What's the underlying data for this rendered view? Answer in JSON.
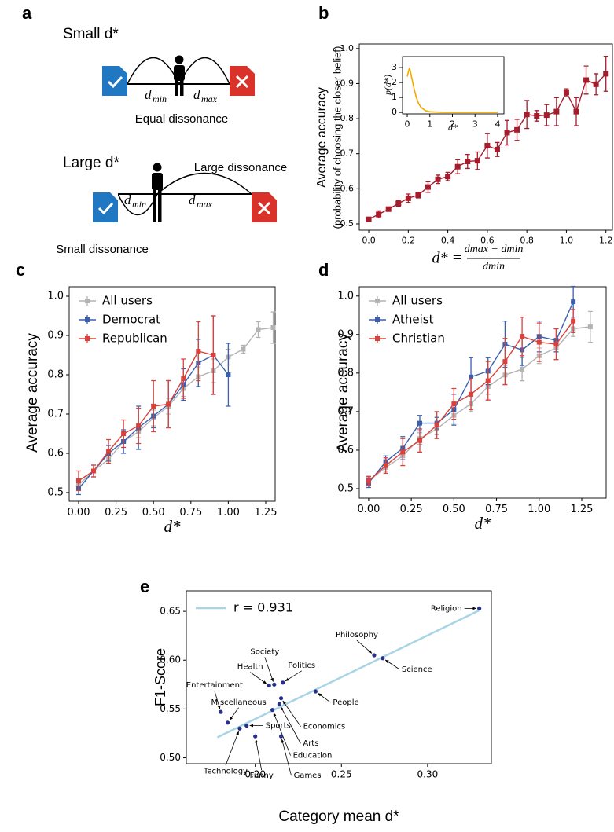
{
  "figure_a": {
    "panel": "a",
    "top": {
      "title": "Small d*",
      "dmin": {
        "symbol": "d",
        "subscript": "min"
      },
      "dmax": {
        "symbol": "d",
        "subscript": "max"
      },
      "caption": "Equal dissonance"
    },
    "bottom": {
      "title": "Large d*",
      "upper_caption": "Large dissonance",
      "dmin": {
        "symbol": "d",
        "subscript": "min"
      },
      "dmax": {
        "symbol": "d",
        "subscript": "max"
      },
      "lower_caption": "Small dissonance"
    }
  },
  "chart_data": [
    {
      "type": "line",
      "panel": "b",
      "ylabel": [
        "Average accuracy",
        "(probability of choosing the closer belief)"
      ],
      "xlabel": {
        "lhs": "d* =",
        "numerator": "dmax − dmin",
        "denominator": "dmin"
      },
      "x": [
        0,
        0.05,
        0.1,
        0.15,
        0.2,
        0.25,
        0.3,
        0.35,
        0.4,
        0.45,
        0.5,
        0.55,
        0.6,
        0.65,
        0.7,
        0.75,
        0.8,
        0.85,
        0.9,
        0.95,
        1,
        1.05,
        1.1,
        1.15,
        1.2
      ],
      "series": [
        {
          "color": "#a51d2d",
          "values": [
            0.513,
            0.527,
            0.542,
            0.558,
            0.573,
            0.582,
            0.605,
            0.627,
            0.635,
            0.663,
            0.678,
            0.68,
            0.723,
            0.712,
            0.76,
            0.768,
            0.812,
            0.808,
            0.81,
            0.82,
            0.875,
            0.82,
            0.91,
            0.898,
            0.928
          ],
          "errors": [
            0.005,
            0.01,
            0.006,
            0.008,
            0.012,
            0.008,
            0.015,
            0.012,
            0.012,
            0.02,
            0.02,
            0.025,
            0.035,
            0.02,
            0.035,
            0.03,
            0.04,
            0.015,
            0.03,
            0.04,
            0.01,
            0.04,
            0.04,
            0.03,
            0.05
          ]
        }
      ],
      "xlim": [
        -0.048,
        1.233
      ],
      "ylim": [
        0.482,
        1.013
      ],
      "xticks": [
        {
          "value": 0,
          "label": "0.0"
        },
        0.2,
        0.4,
        0.6,
        0.8,
        {
          "value": 1,
          "label": "1.0"
        },
        1.2
      ],
      "yticks": [
        0.5,
        0.6,
        0.7,
        0.8,
        0.9,
        {
          "value": 1,
          "label": "1.0"
        }
      ],
      "inset": {
        "type": "line",
        "ylabel": "p(d*)",
        "xlabel": "d*",
        "x": [
          0,
          0.1,
          0.2,
          0.3,
          0.4,
          0.5,
          0.6,
          0.8,
          1,
          1.5,
          2,
          3,
          4
        ],
        "series": [
          {
            "color": "#f2a900",
            "values": [
              2.4,
              3.0,
              2.3,
              1.6,
              1.0,
              0.6,
              0.35,
              0.12,
              0.04,
              0.01,
              0,
              0,
              0
            ]
          }
        ],
        "xlim": [
          -0.21,
          4.28
        ],
        "ylim": [
          -0.1,
          3.74
        ],
        "xticks": [
          0,
          1,
          2,
          3,
          4
        ],
        "yticks": [
          0,
          1,
          2,
          3
        ]
      }
    },
    {
      "type": "line",
      "panel": "c",
      "ylabel": "Average accuracy",
      "xlabel": "d*",
      "legend": "upper left",
      "x": [
        0,
        0.1,
        0.2,
        0.3,
        0.4,
        0.5,
        0.6,
        0.7,
        0.8,
        0.9,
        1,
        1.1,
        1.2,
        1.3
      ],
      "series": [
        {
          "name": "All users",
          "color": "#b3b3b3",
          "values": [
            0.52,
            0.555,
            0.585,
            0.63,
            0.655,
            0.69,
            0.72,
            0.765,
            0.795,
            0.81,
            0.845,
            0.865,
            0.915,
            0.92
          ],
          "errors": [
            0.01,
            0.01,
            0.01,
            0.015,
            0.015,
            0.02,
            0.02,
            0.02,
            0.025,
            0.03,
            0.02,
            0.01,
            0.02,
            0.04
          ]
        },
        {
          "name": "Democrat",
          "color": "#3a5fad",
          "values": [
            0.51,
            0.555,
            0.6,
            0.63,
            0.665,
            0.695,
            0.725,
            0.775,
            0.83,
            0.85,
            0.8,
            null,
            null,
            null
          ],
          "errors": [
            0.015,
            0.015,
            0.02,
            0.03,
            0.055,
            0.03,
            0.06,
            0.04,
            0.06,
            0.1,
            0.08,
            null,
            null,
            null
          ]
        },
        {
          "name": "Republican",
          "color": "#d9413a",
          "values": [
            0.53,
            0.555,
            0.605,
            0.65,
            0.67,
            0.72,
            0.725,
            0.79,
            0.86,
            0.85,
            null,
            null,
            null,
            null
          ],
          "errors": [
            0.025,
            0.015,
            0.03,
            0.035,
            0.045,
            0.065,
            0.06,
            0.05,
            0.075,
            0.1,
            null,
            null,
            null,
            null
          ]
        }
      ],
      "xlim": [
        -0.063,
        1.313
      ],
      "ylim": [
        0.478,
        1.024
      ],
      "xticks": [
        {
          "value": 0,
          "label": "0.00"
        },
        0.25,
        {
          "value": 0.5,
          "label": "0.50"
        },
        0.75,
        {
          "value": 1,
          "label": "1.00"
        },
        1.25
      ],
      "yticks": [
        0.5,
        0.6,
        0.7,
        0.8,
        0.9,
        {
          "value": 1,
          "label": "1.0"
        }
      ]
    },
    {
      "type": "line",
      "panel": "d",
      "ylabel": "Average accuracy",
      "xlabel": "d*",
      "legend": "upper left",
      "x": [
        0,
        0.1,
        0.2,
        0.3,
        0.4,
        0.5,
        0.6,
        0.7,
        0.8,
        0.9,
        1,
        1.1,
        1.2,
        1.3
      ],
      "series": [
        {
          "name": "All users",
          "color": "#b3b3b3",
          "values": [
            0.52,
            0.555,
            0.585,
            0.63,
            0.655,
            0.69,
            0.72,
            0.765,
            0.795,
            0.81,
            0.845,
            0.865,
            0.915,
            0.92
          ],
          "errors": [
            0.01,
            0.01,
            0.01,
            0.015,
            0.015,
            0.02,
            0.02,
            0.02,
            0.025,
            0.03,
            0.02,
            0.01,
            0.02,
            0.04
          ]
        },
        {
          "name": "Atheist",
          "color": "#3a5fad",
          "values": [
            0.515,
            0.57,
            0.605,
            0.67,
            0.67,
            0.705,
            0.79,
            0.805,
            0.875,
            0.86,
            0.895,
            0.885,
            0.985,
            null
          ],
          "errors": [
            0.012,
            0.015,
            0.03,
            0.02,
            0.015,
            0.04,
            0.05,
            0.035,
            0.06,
            0.04,
            0.04,
            0.03,
            0.04,
            null
          ]
        },
        {
          "name": "Christian",
          "color": "#d9413a",
          "values": [
            0.52,
            0.56,
            0.595,
            0.625,
            0.665,
            0.72,
            0.745,
            0.78,
            0.83,
            0.895,
            0.88,
            0.875,
            0.935,
            null
          ],
          "errors": [
            0.012,
            0.02,
            0.035,
            0.03,
            0.035,
            0.04,
            0.04,
            0.05,
            0.06,
            0.05,
            0.05,
            0.04,
            0.03,
            null
          ]
        }
      ],
      "xlim": [
        -0.055,
        1.393
      ],
      "ylim": [
        0.4755,
        1.024
      ],
      "xticks": [
        {
          "value": 0,
          "label": "0.00"
        },
        0.25,
        {
          "value": 0.5,
          "label": "0.50"
        },
        0.75,
        {
          "value": 1,
          "label": "1.00"
        },
        1.25
      ],
      "yticks": [
        0.5,
        0.6,
        0.7,
        0.8,
        0.9,
        {
          "value": 1,
          "label": "1.0"
        }
      ]
    },
    {
      "type": "scatter",
      "panel": "e",
      "ylabel": "F1-Score",
      "xlabel": "Category mean d*",
      "legend": "upper left",
      "color": "#27318b",
      "labels": [
        "Religion",
        "Philosophy",
        "Science",
        "People",
        "Society",
        "Health",
        "Politics",
        "Entertainment",
        "Miscellaneous",
        "Economics",
        "Arts",
        "Education",
        "Sports",
        "Technology",
        "Funny",
        "Games"
      ],
      "x": [
        0.33,
        0.269,
        0.274,
        0.235,
        0.211,
        0.208,
        0.216,
        0.18,
        0.184,
        0.215,
        0.214,
        0.21,
        0.195,
        0.191,
        0.2,
        0.215
      ],
      "values": [
        0.653,
        0.605,
        0.602,
        0.568,
        0.575,
        0.574,
        0.577,
        0.547,
        0.536,
        0.561,
        0.555,
        0.549,
        0.533,
        0.53,
        0.522,
        0.522
      ],
      "fit": {
        "name": "r = 0.931",
        "color": "#a8d4e6",
        "x": [
          0.178,
          0.33
        ],
        "y": [
          0.521,
          0.651
        ]
      },
      "xlim": [
        0.16,
        0.337
      ],
      "ylim": [
        0.494,
        0.671
      ],
      "xticks": [
        {
          "value": 0.2,
          "label": "0.20"
        },
        0.25,
        {
          "value": 0.3,
          "label": "0.30"
        }
      ],
      "yticks": [
        {
          "value": 0.5,
          "label": "0.50"
        },
        0.55,
        {
          "value": 0.6,
          "label": "0.60"
        },
        0.65
      ]
    }
  ]
}
